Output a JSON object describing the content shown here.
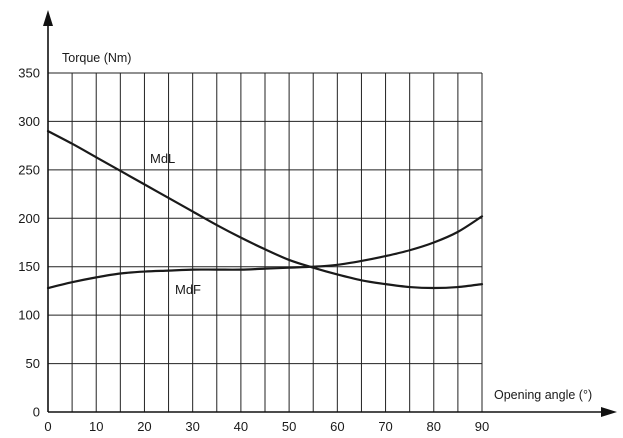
{
  "chart_data": {
    "type": "line",
    "title": "",
    "xlabel": "Opening angle (°)",
    "ylabel": "Torque (Nm)",
    "xlim": [
      0,
      90
    ],
    "ylim": [
      0,
      350
    ],
    "x_ticks": [
      0,
      10,
      20,
      30,
      40,
      50,
      60,
      70,
      80,
      90
    ],
    "y_ticks": [
      0,
      50,
      100,
      150,
      200,
      250,
      300,
      350
    ],
    "grid": true,
    "legend": "none",
    "x": [
      0,
      5,
      10,
      15,
      20,
      25,
      30,
      35,
      40,
      45,
      50,
      55,
      60,
      65,
      70,
      75,
      80,
      85,
      90
    ],
    "series": [
      {
        "name": "MdL",
        "values": [
          290,
          277,
          263,
          249,
          235,
          221,
          207,
          193,
          180,
          168,
          157,
          149,
          142,
          136,
          132,
          129,
          128,
          129,
          132
        ]
      },
      {
        "name": "MdF",
        "values": [
          128,
          134,
          139,
          143,
          145,
          146,
          147,
          147,
          147,
          148,
          149,
          150,
          152,
          156,
          161,
          167,
          175,
          186,
          202
        ]
      }
    ]
  }
}
